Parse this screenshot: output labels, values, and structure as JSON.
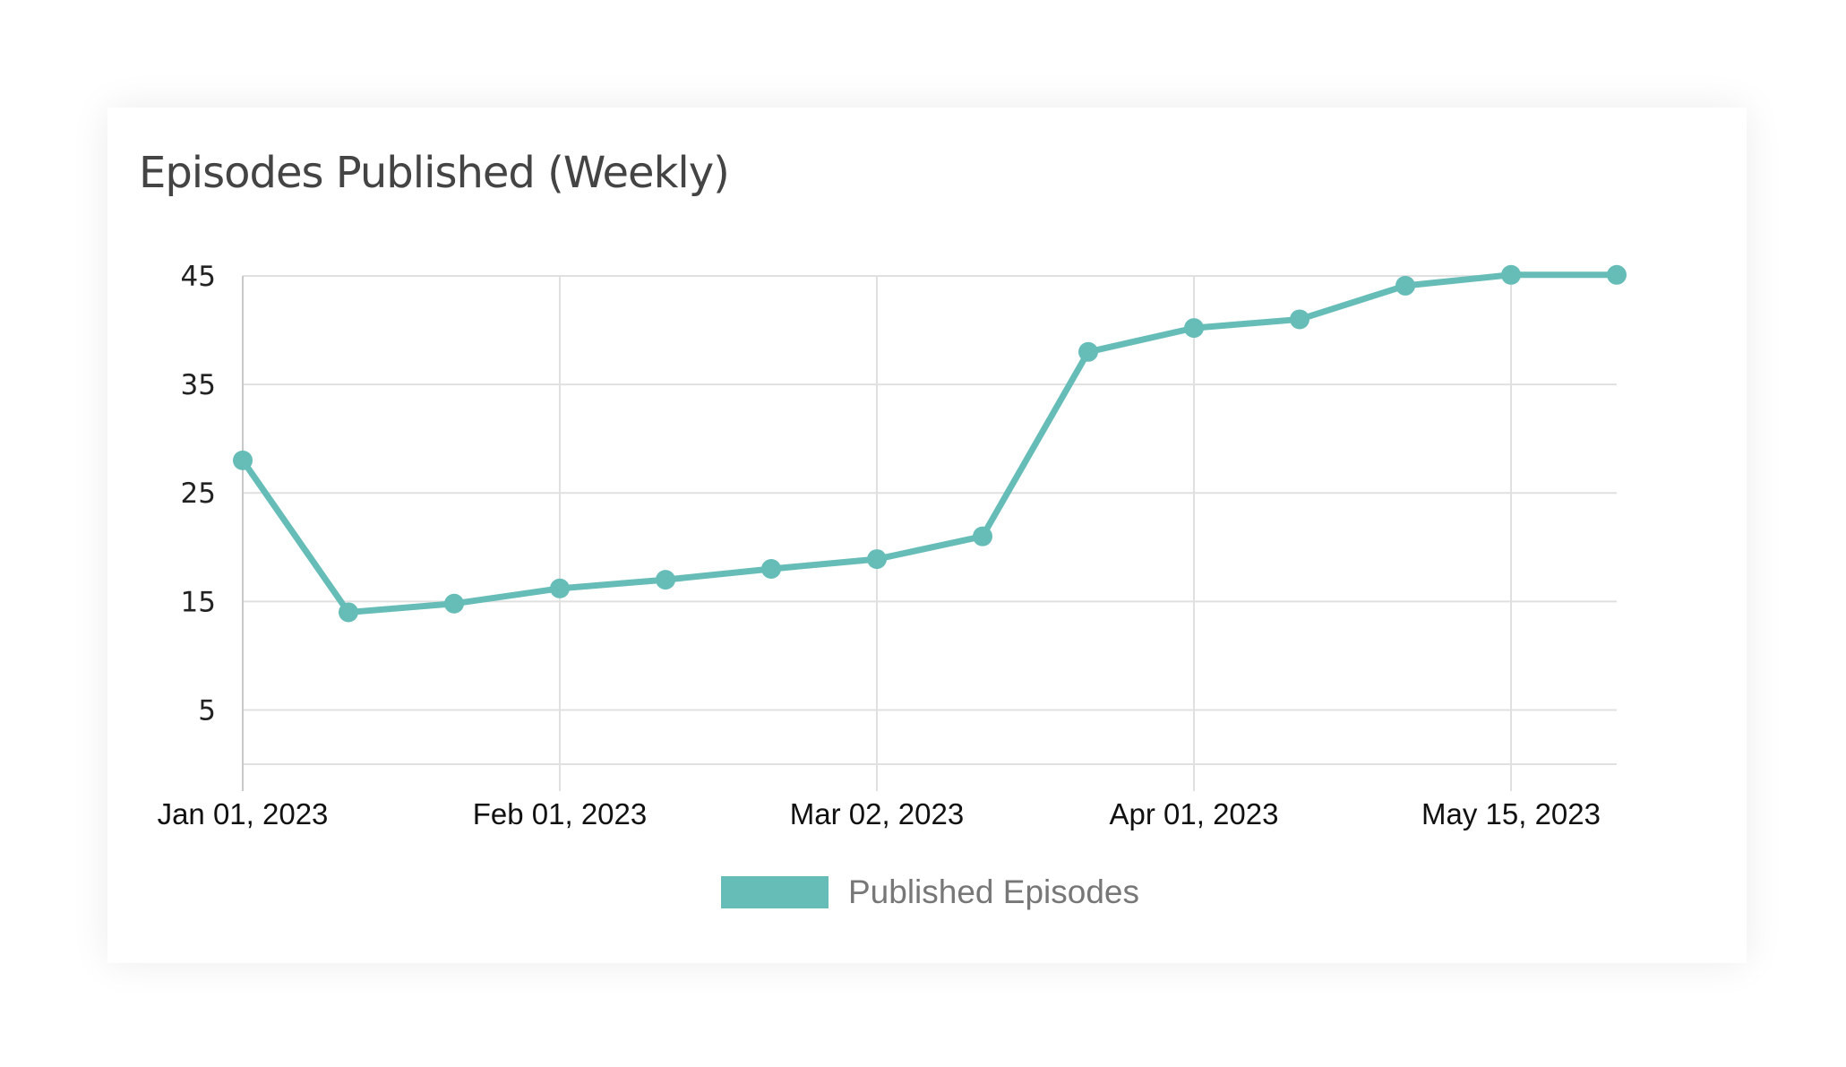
{
  "chart_data": {
    "type": "line",
    "title": "Episodes Published (Weekly)",
    "xlabel": "",
    "ylabel": "",
    "x_tick_labels": [
      {
        "index": 0,
        "label": "Jan 01, 2023"
      },
      {
        "index": 3,
        "label": "Feb 01, 2023"
      },
      {
        "index": 6,
        "label": "Mar 02, 2023"
      },
      {
        "index": 9,
        "label": "Apr 01, 2023"
      },
      {
        "index": 12,
        "label": "May 15, 2023"
      }
    ],
    "y_ticks": [
      5,
      15,
      25,
      35,
      45
    ],
    "ylim": [
      0,
      45
    ],
    "grid": true,
    "legend_position": "bottom-center",
    "series": [
      {
        "name": "Published Episodes",
        "color": "#66bdb8",
        "values": [
          28,
          14,
          14.8,
          16.2,
          17,
          18,
          18.9,
          21,
          38,
          40.2,
          41,
          44.1,
          45.1,
          45.1
        ]
      }
    ]
  }
}
